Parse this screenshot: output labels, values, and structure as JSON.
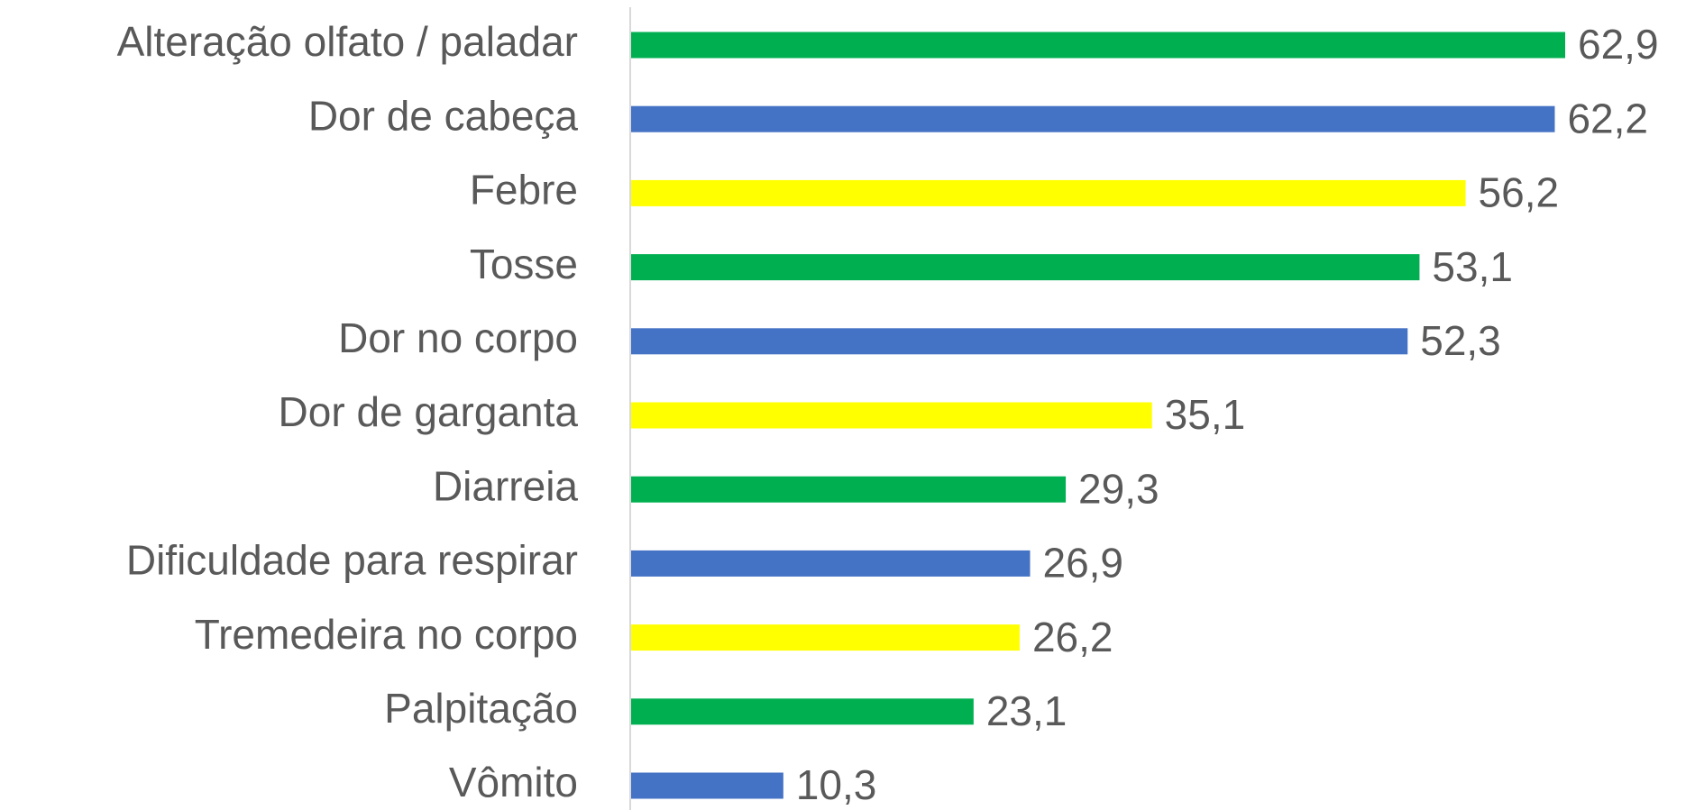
{
  "chart_data": {
    "type": "bar",
    "orientation": "horizontal",
    "categories": [
      "Alteração olfato / paladar",
      "Dor de cabeça",
      "Febre",
      "Tosse",
      "Dor no corpo",
      "Dor de garganta",
      "Diarreia",
      "Dificuldade para respirar",
      "Tremedeira no corpo",
      "Palpitação",
      "Vômito"
    ],
    "values": [
      62.9,
      62.2,
      56.2,
      53.1,
      52.3,
      35.1,
      29.3,
      26.9,
      26.2,
      23.1,
      10.3
    ],
    "value_labels": [
      "62,9",
      "62,2",
      "56,2",
      "53,1",
      "52,3",
      "35,1",
      "29,3",
      "26,9",
      "26,2",
      "23,1",
      "10,3"
    ],
    "colors": [
      "#00b050",
      "#4472c4",
      "#ffff00",
      "#00b050",
      "#4472c4",
      "#ffff00",
      "#00b050",
      "#4472c4",
      "#ffff00",
      "#00b050",
      "#4472c4"
    ]
  }
}
